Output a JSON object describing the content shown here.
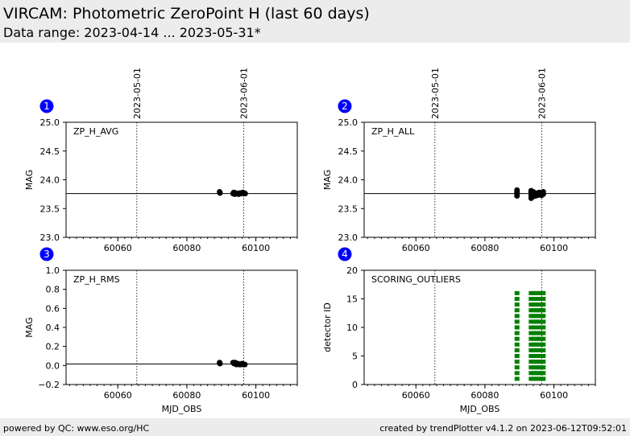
{
  "header": {
    "title": "VIRCAM: Photometric ZeroPoint H (last 60 days)",
    "subtitle": "Data range: 2023-04-14 ... 2023-05-31*"
  },
  "footer": {
    "left": "powered by QC: www.eso.org/HC",
    "right": "created by trendPlotter v4.1.2 on 2023-06-12T09:52:01"
  },
  "chart_data": [
    {
      "type": "scatter",
      "panel_number": "1",
      "label": "ZP_H_AVG",
      "xlabel": "",
      "ylabel": "MAG",
      "xlim": [
        60045,
        60112
      ],
      "ylim": [
        23.0,
        25.0
      ],
      "yticks": [
        "23.0",
        "23.5",
        "24.0",
        "24.5",
        "25.0"
      ],
      "xticks": [
        "60060",
        "60080",
        "60100"
      ],
      "date_markers": [
        {
          "x": 60065.5,
          "label": "2023-05-01"
        },
        {
          "x": 60096.5,
          "label": "2023-06-01"
        }
      ],
      "reference_line": 23.76,
      "marker_color": "#000000",
      "series": [
        {
          "x": [
            60089.5,
            60089.6,
            60093.4,
            60093.6,
            60093.9,
            60094.2,
            60094.6,
            60095.0,
            60095.4,
            60095.8,
            60096.2,
            60096.6,
            60096.9
          ],
          "y": [
            23.79,
            23.77,
            23.76,
            23.78,
            23.75,
            23.77,
            23.76,
            23.75,
            23.77,
            23.76,
            23.78,
            23.77,
            23.76
          ]
        }
      ]
    },
    {
      "type": "scatter",
      "panel_number": "2",
      "label": "ZP_H_ALL",
      "xlabel": "",
      "ylabel": "MAG",
      "xlim": [
        60045,
        60112
      ],
      "ylim": [
        23.0,
        25.0
      ],
      "yticks": [
        "23.0",
        "23.5",
        "24.0",
        "24.5",
        "25.0"
      ],
      "xticks": [
        "60060",
        "60080",
        "60100"
      ],
      "date_markers": [
        {
          "x": 60065.5,
          "label": "2023-05-01"
        },
        {
          "x": 60096.5,
          "label": "2023-06-01"
        }
      ],
      "reference_line": 23.76,
      "marker_color": "#000000",
      "series": [
        {
          "x": [
            60089.3,
            60089.3,
            60089.3,
            60089.3,
            60089.3,
            60093.4,
            60093.4,
            60093.4,
            60093.4,
            60094.0,
            60094.0,
            60094.0,
            60094.6,
            60094.6,
            60094.6,
            60095.2,
            60095.2,
            60095.8,
            60095.8,
            60096.4,
            60096.4,
            60096.9,
            60096.9
          ],
          "y": [
            23.72,
            23.76,
            23.79,
            23.82,
            23.75,
            23.68,
            23.73,
            23.78,
            23.81,
            23.71,
            23.75,
            23.79,
            23.72,
            23.76,
            23.74,
            23.73,
            23.77,
            23.74,
            23.78,
            23.73,
            23.77,
            23.75,
            23.79
          ]
        }
      ]
    },
    {
      "type": "scatter",
      "panel_number": "3",
      "label": "ZP_H_RMS",
      "xlabel": "MJD_OBS",
      "ylabel": "MAG",
      "xlim": [
        60045,
        60112
      ],
      "ylim": [
        -0.2,
        1.0
      ],
      "yticks": [
        "−0.2",
        "0.0",
        "0.2",
        "0.4",
        "0.6",
        "0.8",
        "1.0"
      ],
      "xticks": [
        "60060",
        "60080",
        "60100"
      ],
      "date_markers": [
        {
          "x": 60065.5,
          "label": ""
        },
        {
          "x": 60096.5,
          "label": ""
        }
      ],
      "reference_line": 0.015,
      "marker_color": "#000000",
      "series": [
        {
          "x": [
            60089.5,
            60089.6,
            60093.4,
            60093.7,
            60094.0,
            60094.4,
            60094.8,
            60095.2,
            60095.6,
            60096.0,
            60096.4,
            60096.8
          ],
          "y": [
            0.03,
            0.02,
            0.03,
            0.02,
            0.03,
            0.01,
            0.02,
            0.01,
            0.01,
            0.02,
            0.01,
            0.01
          ]
        }
      ]
    },
    {
      "type": "scatter",
      "panel_number": "4",
      "label": "SCORING_OUTLIERS",
      "xlabel": "MJD_OBS",
      "ylabel": "detector ID",
      "xlim": [
        60045,
        60112
      ],
      "ylim": [
        0,
        20
      ],
      "yticks": [
        "0",
        "5",
        "10",
        "15",
        "20"
      ],
      "xticks": [
        "60060",
        "60080",
        "60100"
      ],
      "date_markers": [
        {
          "x": 60065.5,
          "label": ""
        },
        {
          "x": 60096.5,
          "label": ""
        }
      ],
      "reference_line": null,
      "marker_color": "#008000",
      "series": [
        {
          "x": [
            60089.3,
            60093.4,
            60094.0,
            60094.6,
            60095.2,
            60095.8,
            60096.4,
            60096.9
          ],
          "y_range": [
            1,
            16
          ]
        }
      ]
    }
  ],
  "colors": {
    "badge": "#0000ff",
    "header_bg": "#ececec",
    "outlier_marker": "#008000"
  }
}
